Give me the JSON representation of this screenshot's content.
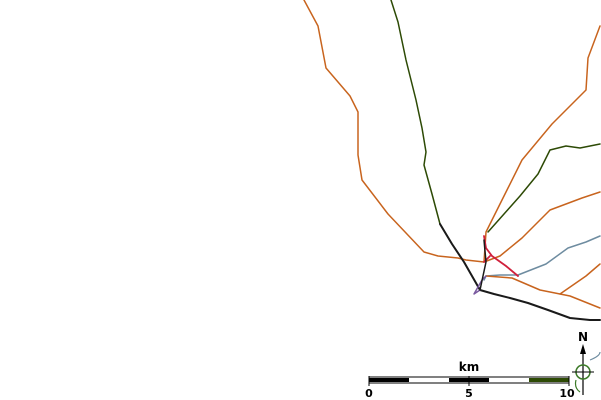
{
  "map": {
    "colors": {
      "background": "#ffffff",
      "orange_route": "#c8641e",
      "dark_green_route": "#2d4a05",
      "black_route": "#1a1a1a",
      "red_route": "#d0203c",
      "purple_route": "#7a5aa0",
      "gray_blue_route": "#6e8ca0",
      "scale_black": "#000000",
      "scale_white": "#ffffff",
      "scale_green": "#2d4a05",
      "north_arrow_green": "#3c7a28"
    },
    "scale_bar": {
      "unit_label": "km",
      "tick_labels": [
        "0",
        "5",
        "10"
      ]
    },
    "north_arrow": {
      "label": "N",
      "icon": "north-arrow-icon"
    }
  }
}
